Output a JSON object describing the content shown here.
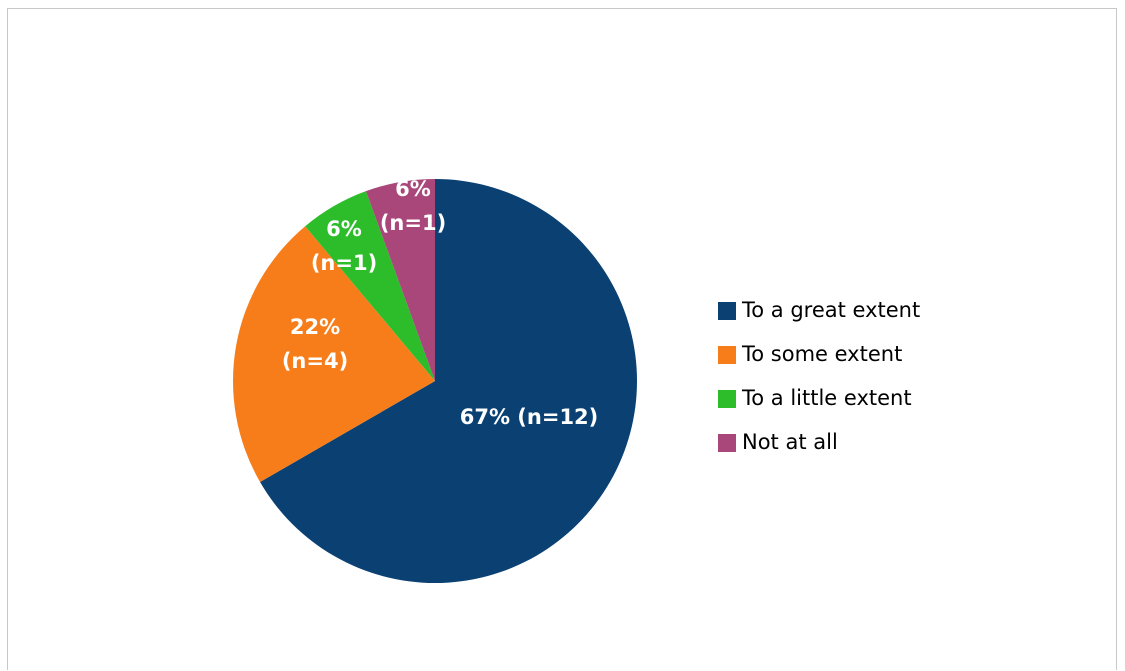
{
  "chart_data": {
    "type": "pie",
    "title": "",
    "categories": [
      "To a great extent",
      "To some extent",
      "To a little extent",
      "Not at all"
    ],
    "values": [
      12,
      4,
      1,
      1
    ],
    "percent_labels": [
      "67% (n=12)",
      "22% (n=4)",
      "6% (n=1)",
      "6% (n=1)"
    ],
    "data_labels": [
      [
        "67% (n=12)"
      ],
      [
        "22%",
        "(n=4)"
      ],
      [
        "6%",
        "(n=1)"
      ],
      [
        "6%",
        "(n=1)"
      ]
    ],
    "colors": [
      "#0a4172",
      "#f77d1b",
      "#2dbd2b",
      "#a9477a"
    ],
    "start_angle_deg": 0,
    "direction": "clockwise",
    "legend_position": "right"
  }
}
